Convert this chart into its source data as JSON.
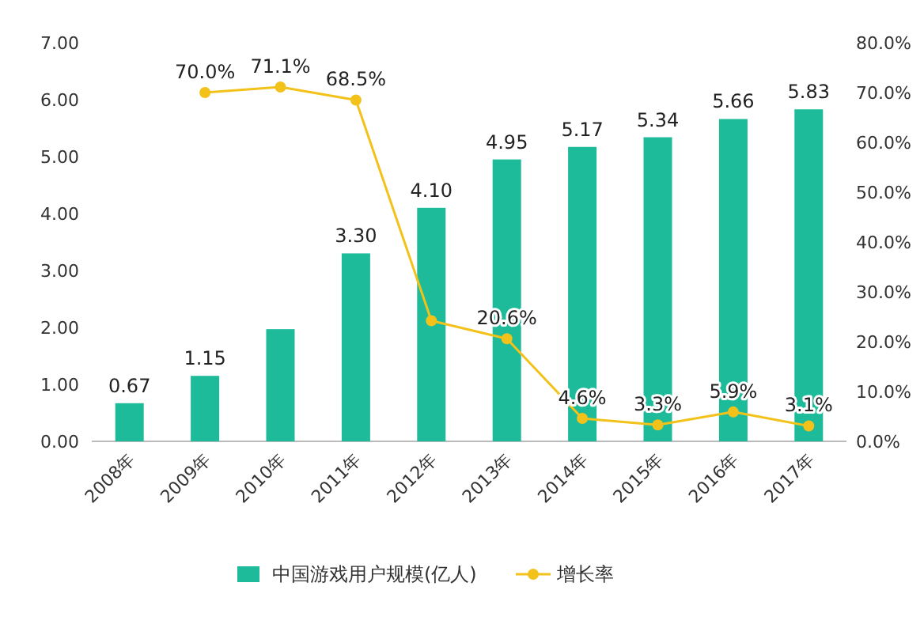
{
  "chart_data": {
    "type": "bar",
    "categories": [
      "2008年",
      "2009年",
      "2010年",
      "2011年",
      "2012年",
      "2013年",
      "2014年",
      "2015年",
      "2016年",
      "2017年"
    ],
    "series": [
      {
        "name": "中国游戏用户规模(亿人)",
        "color": "#1dbb99",
        "values": [
          0.67,
          1.15,
          1.97,
          3.3,
          4.1,
          4.95,
          5.17,
          5.34,
          5.66,
          5.83
        ],
        "value_labels": [
          "0.67",
          "1.15",
          null,
          "3.30",
          "4.10",
          "4.95",
          "5.17",
          "5.34",
          "5.66",
          "5.83"
        ]
      },
      {
        "name": "增长率",
        "type": "line",
        "axis": "y2",
        "color": "#f2c21b",
        "values": [
          null,
          70.0,
          71.1,
          68.5,
          24.2,
          20.6,
          4.6,
          3.3,
          5.9,
          3.1
        ],
        "value_labels": [
          null,
          "70.0%",
          "71.1%",
          "68.5%",
          null,
          "20.6%",
          "4.6%",
          "3.3%",
          "5.9%",
          "3.1%"
        ]
      }
    ],
    "ylim": [
      0,
      7
    ],
    "yticks": [
      {
        "value": 0,
        "label": "0.00"
      },
      {
        "value": 1,
        "label": "1.00"
      },
      {
        "value": 2,
        "label": "2.00"
      },
      {
        "value": 3,
        "label": "3.00"
      },
      {
        "value": 4,
        "label": "4.00"
      },
      {
        "value": 5,
        "label": "5.00"
      },
      {
        "value": 6,
        "label": "6.00"
      },
      {
        "value": 7,
        "label": "7.00"
      }
    ],
    "y2lim": [
      0,
      80
    ],
    "y2ticks": [
      {
        "value": 0,
        "label": "0.0%"
      },
      {
        "value": 10,
        "label": "10.0%"
      },
      {
        "value": 20,
        "label": "20.0%"
      },
      {
        "value": 30,
        "label": "30.0%"
      },
      {
        "value": 40,
        "label": "40.0%"
      },
      {
        "value": 50,
        "label": "50.0%"
      },
      {
        "value": 60,
        "label": "60.0%"
      },
      {
        "value": 70,
        "label": "70.0%"
      },
      {
        "value": 80,
        "label": "80.0%"
      }
    ],
    "legend": "bottom",
    "marker": "circle"
  }
}
